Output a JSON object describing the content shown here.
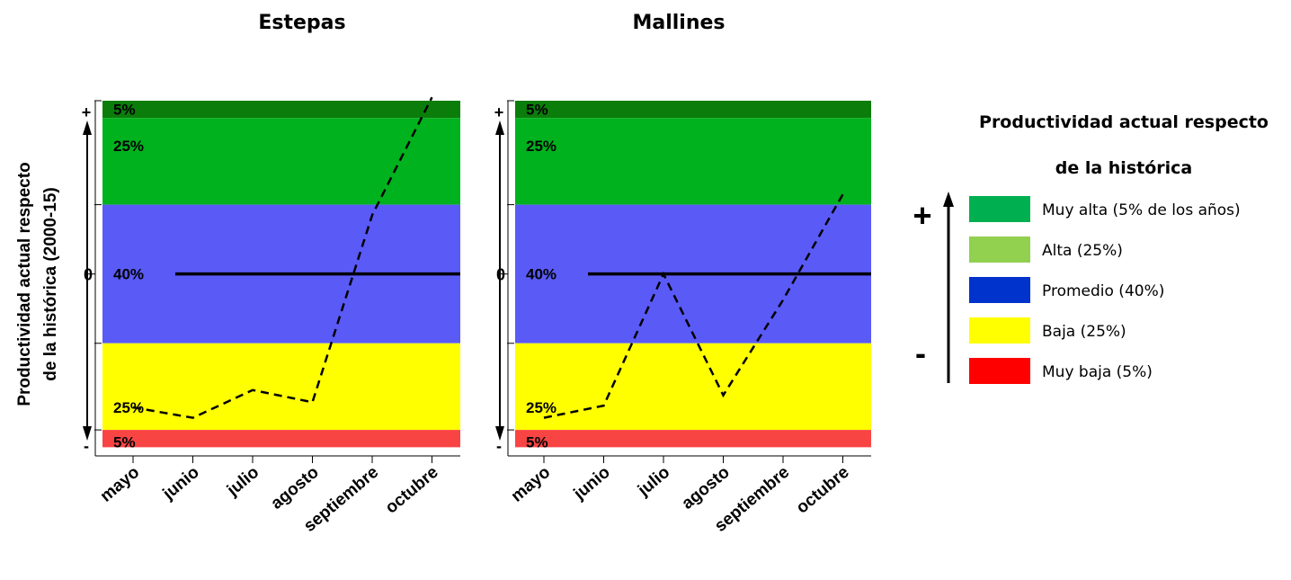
{
  "y_axis": {
    "label_line1": "Productividad actual respecto",
    "label_line2": "de la histórica (2000-15)",
    "top_symbol": "+",
    "bottom_symbol": "-",
    "zero_label": "0"
  },
  "bands": [
    {
      "label": "5%",
      "range": [
        95,
        100
      ],
      "color": "#0b7d0b"
    },
    {
      "label": "25%",
      "range": [
        70,
        95
      ],
      "color": "#00b21e"
    },
    {
      "label": "40%",
      "range": [
        30,
        70
      ],
      "color": "#5a5af7"
    },
    {
      "label": "25%",
      "range": [
        5,
        30
      ],
      "color": "#ffff00"
    },
    {
      "label": "5%",
      "range": [
        0,
        5
      ],
      "color": "#f94444"
    }
  ],
  "chart_data": [
    {
      "type": "line",
      "title": "Estepas",
      "categories": [
        "mayo",
        "junio",
        "julio",
        "agosto",
        "septiembre",
        "octubre"
      ],
      "series": [
        {
          "values": [
            11.5,
            8.5,
            16.5,
            13,
            67,
            101
          ]
        }
      ],
      "reference_line": 50,
      "ylim": [
        -2.5,
        100
      ]
    },
    {
      "type": "line",
      "title": "Mallines",
      "categories": [
        "mayo",
        "junio",
        "julio",
        "agosto",
        "septiembre",
        "octubre"
      ],
      "series": [
        {
          "values": [
            8.5,
            12,
            50,
            15,
            42.5,
            73
          ]
        }
      ],
      "reference_line": 50,
      "ylim": [
        -2.5,
        100
      ]
    }
  ],
  "legend": {
    "title_line1": "Productividad actual respecto",
    "title_line2": "de la histórica",
    "plus": "+",
    "minus": "-",
    "items": [
      {
        "label": "Muy alta (5% de los años)",
        "color": "#00b050"
      },
      {
        "label": "Alta (25%)",
        "color": "#92d050"
      },
      {
        "label": "Promedio (40%)",
        "color": "#0033cc"
      },
      {
        "label": "Baja (25%)",
        "color": "#ffff00"
      },
      {
        "label": "Muy baja (5%)",
        "color": "#ff0000"
      }
    ]
  }
}
